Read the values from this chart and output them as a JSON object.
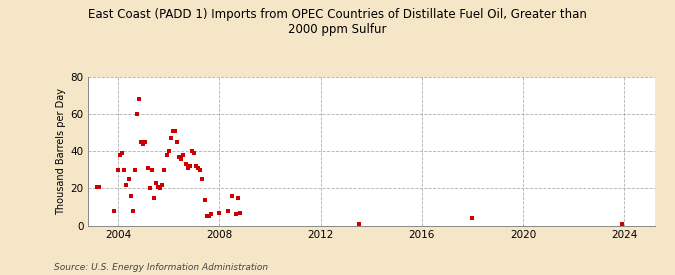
{
  "title": "East Coast (PADD 1) Imports from OPEC Countries of Distillate Fuel Oil, Greater than\n2000 ppm Sulfur",
  "ylabel": "Thousand Barrels per Day",
  "source": "Source: U.S. Energy Information Administration",
  "background_color": "#f5e6c8",
  "plot_bg_color": "#ffffff",
  "marker_color": "#cc0000",
  "xlim": [
    2002.8,
    2025.2
  ],
  "ylim": [
    0,
    80
  ],
  "yticks": [
    0,
    20,
    40,
    60,
    80
  ],
  "xticks": [
    2004,
    2008,
    2012,
    2016,
    2020,
    2024
  ],
  "x": [
    2003.17,
    2003.25,
    2003.83,
    2004.0,
    2004.08,
    2004.17,
    2004.25,
    2004.33,
    2004.42,
    2004.5,
    2004.58,
    2004.67,
    2004.75,
    2004.83,
    2004.92,
    2005.0,
    2005.08,
    2005.17,
    2005.25,
    2005.33,
    2005.42,
    2005.5,
    2005.58,
    2005.67,
    2005.75,
    2005.83,
    2005.92,
    2006.0,
    2006.08,
    2006.17,
    2006.25,
    2006.33,
    2006.42,
    2006.5,
    2006.58,
    2006.67,
    2006.75,
    2006.83,
    2006.92,
    2007.0,
    2007.08,
    2007.17,
    2007.25,
    2007.33,
    2007.42,
    2007.5,
    2007.58,
    2007.67,
    2008.0,
    2008.33,
    2008.5,
    2008.67,
    2008.75,
    2008.83,
    2013.5,
    2018.0,
    2023.92
  ],
  "y": [
    21,
    21,
    8,
    30,
    38,
    39,
    30,
    22,
    25,
    16,
    8,
    30,
    60,
    68,
    45,
    44,
    45,
    31,
    20,
    30,
    15,
    23,
    21,
    20,
    22,
    30,
    38,
    40,
    47,
    51,
    51,
    45,
    37,
    36,
    38,
    33,
    31,
    32,
    40,
    39,
    32,
    31,
    30,
    25,
    14,
    5,
    5,
    6,
    7,
    8,
    16,
    6,
    15,
    7,
    1,
    4,
    1
  ]
}
